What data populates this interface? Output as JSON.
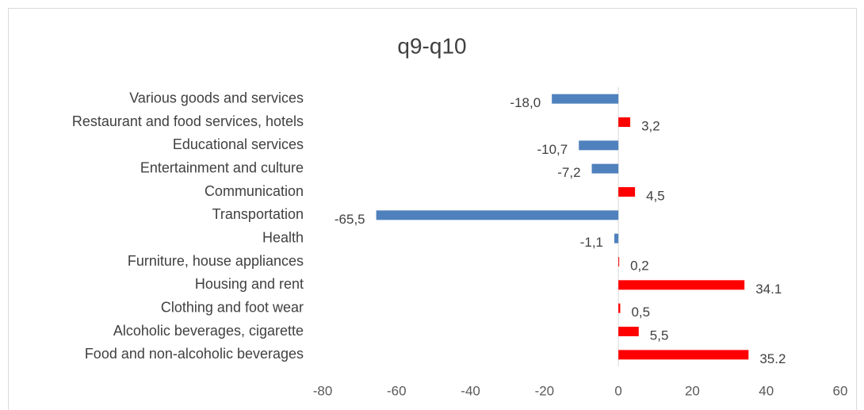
{
  "chart_data": {
    "type": "hbar",
    "title": "q9-q10",
    "categories": [
      "Various goods and services",
      "Restaurant and food services, hotels",
      "Educational services",
      "Entertainment and culture",
      "Communication",
      "Transportation",
      "Health",
      "Furniture, house appliances",
      "Housing and rent",
      "Clothing and foot wear",
      "Alcoholic beverages, cigarette",
      "Food and non-alcoholic beverages"
    ],
    "values": [
      -18.0,
      3.2,
      -10.7,
      -7.2,
      4.5,
      -65.5,
      -1.1,
      0.2,
      34.1,
      0.5,
      5.5,
      35.2
    ],
    "value_labels": [
      "-18,0",
      "3,2",
      "-10,7",
      "-7,2",
      "4,5",
      "-65,5",
      "-1,1",
      "0,2",
      "34.1",
      "0,5",
      "5,5",
      "35.2"
    ],
    "positive_color": "#ff0000",
    "negative_color": "#4f81bd",
    "xlim": [
      -80,
      60
    ],
    "xticks": [
      -80,
      -60,
      -40,
      -20,
      0,
      20,
      40,
      60
    ],
    "grid": false
  }
}
